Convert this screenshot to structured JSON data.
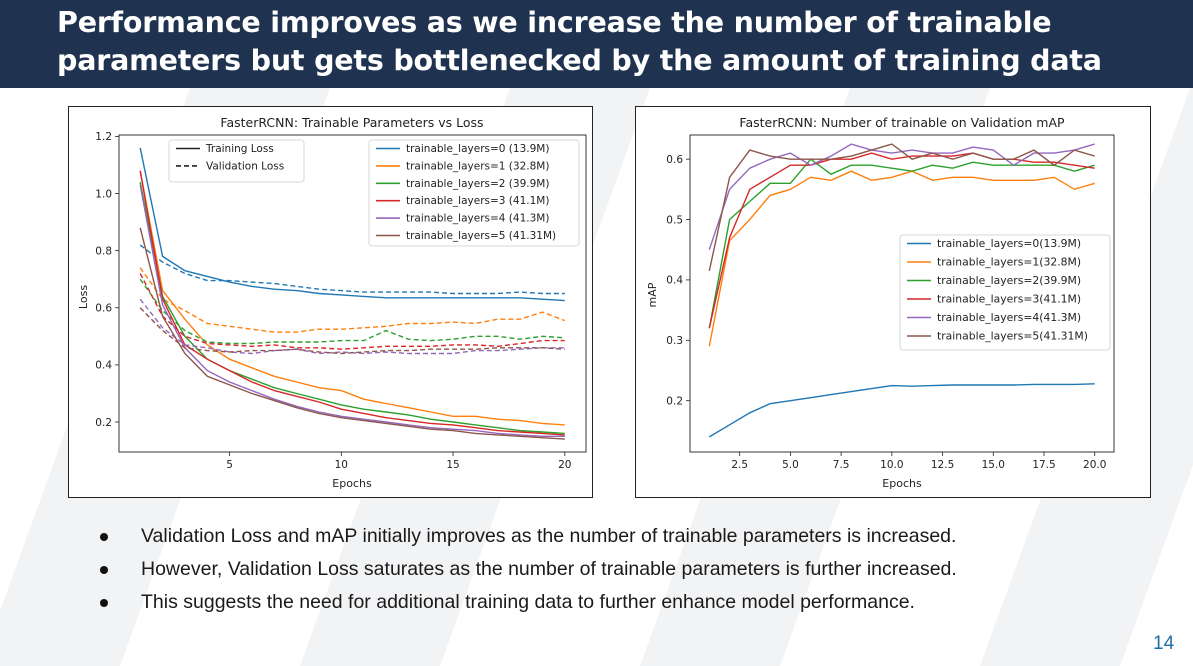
{
  "slide": {
    "title_line1": "Performance improves as we increase the number of trainable",
    "title_line2": "parameters but gets bottlenecked by the amount of training data",
    "bullets": [
      "Validation Loss and mAP initially improves as the number of trainable parameters is increased.",
      "However, Validation Loss saturates as the number of trainable parameters is further increased.",
      "This suggests the need for additional training data to further enhance model performance."
    ],
    "page_number": "14",
    "colors": {
      "header_bg": "#1f3350",
      "page_number": "#1f6fa8"
    }
  },
  "chart_data": [
    {
      "type": "line",
      "title": "FasterRCNN: Trainable Parameters vs Loss",
      "xlabel": "Epochs",
      "ylabel": "Loss",
      "xlim": [
        0.05,
        20.95
      ],
      "ylim": [
        0.095,
        1.205
      ],
      "xticks": [
        5,
        10,
        15,
        20
      ],
      "yticks": [
        0.2,
        0.4,
        0.6,
        0.8,
        1.0,
        1.2
      ],
      "ytick_labels": [
        "0.2",
        "0.4",
        "0.6",
        "0.8",
        "1.0",
        "1.2"
      ],
      "grid": false,
      "style_legend": {
        "placement": "upper-left",
        "entries": [
          {
            "label": "Training Loss",
            "dash": "solid"
          },
          {
            "label": "Validation Loss",
            "dash": "dashed"
          }
        ]
      },
      "legend_placement": "upper-right",
      "x": [
        1,
        2,
        3,
        4,
        5,
        6,
        7,
        8,
        9,
        10,
        11,
        12,
        13,
        14,
        15,
        16,
        17,
        18,
        19,
        20
      ],
      "series": [
        {
          "name": "trainable_layers=0 (13.9M)",
          "color": "#1f77b4",
          "train": [
            1.16,
            0.78,
            0.73,
            0.71,
            0.69,
            0.675,
            0.665,
            0.66,
            0.65,
            0.645,
            0.64,
            0.635,
            0.635,
            0.635,
            0.635,
            0.635,
            0.635,
            0.635,
            0.63,
            0.625
          ],
          "val": [
            0.82,
            0.76,
            0.72,
            0.695,
            0.695,
            0.69,
            0.685,
            0.675,
            0.665,
            0.66,
            0.655,
            0.655,
            0.655,
            0.655,
            0.65,
            0.65,
            0.65,
            0.655,
            0.65,
            0.65
          ]
        },
        {
          "name": "trainable_layers=1 (32.8M)",
          "color": "#ff7f0e",
          "train": [
            1.08,
            0.66,
            0.56,
            0.47,
            0.42,
            0.39,
            0.36,
            0.34,
            0.32,
            0.31,
            0.28,
            0.265,
            0.25,
            0.235,
            0.22,
            0.22,
            0.21,
            0.205,
            0.195,
            0.19
          ],
          "val": [
            0.74,
            0.63,
            0.59,
            0.545,
            0.535,
            0.525,
            0.515,
            0.515,
            0.525,
            0.525,
            0.53,
            0.535,
            0.545,
            0.545,
            0.55,
            0.545,
            0.56,
            0.56,
            0.585,
            0.555
          ]
        },
        {
          "name": "trainable_layers=2 (39.9M)",
          "color": "#2ca02c",
          "train": [
            1.04,
            0.64,
            0.5,
            0.42,
            0.38,
            0.35,
            0.32,
            0.3,
            0.28,
            0.26,
            0.245,
            0.235,
            0.225,
            0.21,
            0.2,
            0.19,
            0.18,
            0.17,
            0.165,
            0.16
          ],
          "val": [
            0.7,
            0.59,
            0.52,
            0.48,
            0.475,
            0.475,
            0.48,
            0.48,
            0.48,
            0.485,
            0.485,
            0.52,
            0.49,
            0.485,
            0.49,
            0.5,
            0.5,
            0.49,
            0.5,
            0.495
          ]
        },
        {
          "name": "trainable_layers=3 (41.1M)",
          "color": "#d62728",
          "train": [
            1.08,
            0.63,
            0.47,
            0.42,
            0.38,
            0.34,
            0.31,
            0.29,
            0.27,
            0.245,
            0.23,
            0.215,
            0.205,
            0.195,
            0.19,
            0.18,
            0.17,
            0.165,
            0.16,
            0.155
          ],
          "val": [
            0.72,
            0.57,
            0.5,
            0.475,
            0.47,
            0.465,
            0.47,
            0.46,
            0.46,
            0.455,
            0.46,
            0.465,
            0.465,
            0.465,
            0.47,
            0.47,
            0.465,
            0.475,
            0.485,
            0.485
          ]
        },
        {
          "name": "trainable_layers=4 (41.3M)",
          "color": "#9467bd",
          "train": [
            1.03,
            0.61,
            0.46,
            0.38,
            0.34,
            0.31,
            0.28,
            0.255,
            0.235,
            0.22,
            0.21,
            0.2,
            0.19,
            0.18,
            0.175,
            0.17,
            0.16,
            0.155,
            0.15,
            0.15
          ],
          "val": [
            0.63,
            0.53,
            0.47,
            0.46,
            0.445,
            0.44,
            0.45,
            0.455,
            0.44,
            0.445,
            0.44,
            0.445,
            0.44,
            0.44,
            0.44,
            0.45,
            0.45,
            0.455,
            0.46,
            0.46
          ]
        },
        {
          "name": "trainable_layers=5 (41.31M)",
          "color": "#8c564b",
          "train": [
            0.88,
            0.57,
            0.44,
            0.36,
            0.33,
            0.3,
            0.275,
            0.25,
            0.23,
            0.215,
            0.205,
            0.195,
            0.185,
            0.175,
            0.17,
            0.16,
            0.155,
            0.15,
            0.145,
            0.14
          ],
          "val": [
            0.6,
            0.52,
            0.46,
            0.45,
            0.445,
            0.45,
            0.45,
            0.455,
            0.445,
            0.44,
            0.445,
            0.45,
            0.45,
            0.455,
            0.455,
            0.455,
            0.46,
            0.46,
            0.46,
            0.455
          ]
        }
      ]
    },
    {
      "type": "line",
      "title": "FasterRCNN: Number of trainable on Validation mAP",
      "xlabel": "Epochs",
      "ylabel": "mAP",
      "xlim": [
        0.05,
        20.95
      ],
      "ylim": [
        0.115,
        0.64
      ],
      "xticks": [
        2.5,
        5.0,
        7.5,
        10.0,
        12.5,
        15.0,
        17.5,
        20.0
      ],
      "xtick_labels": [
        "2.5",
        "5.0",
        "7.5",
        "10.0",
        "12.5",
        "15.0",
        "17.5",
        "20.0"
      ],
      "yticks": [
        0.2,
        0.3,
        0.4,
        0.5,
        0.6
      ],
      "grid": false,
      "legend_placement": "center-right",
      "x": [
        1,
        2,
        3,
        4,
        5,
        6,
        7,
        8,
        9,
        10,
        11,
        12,
        13,
        14,
        15,
        16,
        17,
        18,
        19,
        20
      ],
      "series": [
        {
          "name": "trainable_layers=0(13.9M)",
          "color": "#1f77b4",
          "values": [
            0.14,
            0.16,
            0.18,
            0.195,
            0.2,
            0.205,
            0.21,
            0.215,
            0.22,
            0.225,
            0.224,
            0.225,
            0.226,
            0.226,
            0.226,
            0.226,
            0.227,
            0.227,
            0.227,
            0.228
          ]
        },
        {
          "name": "trainable_layers=1(32.8M)",
          "color": "#ff7f0e",
          "values": [
            0.29,
            0.465,
            0.5,
            0.54,
            0.55,
            0.57,
            0.565,
            0.58,
            0.565,
            0.57,
            0.58,
            0.565,
            0.57,
            0.57,
            0.565,
            0.565,
            0.565,
            0.57,
            0.55,
            0.56
          ]
        },
        {
          "name": "trainable_layers=2(39.9M)",
          "color": "#2ca02c",
          "values": [
            0.32,
            0.5,
            0.53,
            0.56,
            0.56,
            0.6,
            0.575,
            0.59,
            0.59,
            0.585,
            0.58,
            0.59,
            0.585,
            0.595,
            0.59,
            0.59,
            0.59,
            0.59,
            0.58,
            0.59
          ]
        },
        {
          "name": "trainable_layers=3(41.1M)",
          "color": "#d62728",
          "values": [
            0.32,
            0.47,
            0.55,
            0.57,
            0.59,
            0.59,
            0.6,
            0.6,
            0.61,
            0.6,
            0.605,
            0.605,
            0.605,
            0.61,
            0.6,
            0.6,
            0.595,
            0.595,
            0.59,
            0.585
          ]
        },
        {
          "name": "trainable_layers=4(41.3M)",
          "color": "#9467bd",
          "values": [
            0.45,
            0.55,
            0.585,
            0.6,
            0.61,
            0.59,
            0.605,
            0.625,
            0.615,
            0.61,
            0.615,
            0.61,
            0.61,
            0.62,
            0.615,
            0.59,
            0.61,
            0.61,
            0.615,
            0.625
          ]
        },
        {
          "name": "trainable_layers=5(41.31M)",
          "color": "#8c564b",
          "values": [
            0.415,
            0.57,
            0.615,
            0.605,
            0.6,
            0.6,
            0.6,
            0.605,
            0.615,
            0.625,
            0.6,
            0.61,
            0.6,
            0.61,
            0.6,
            0.6,
            0.615,
            0.59,
            0.615,
            0.605
          ]
        }
      ]
    }
  ]
}
